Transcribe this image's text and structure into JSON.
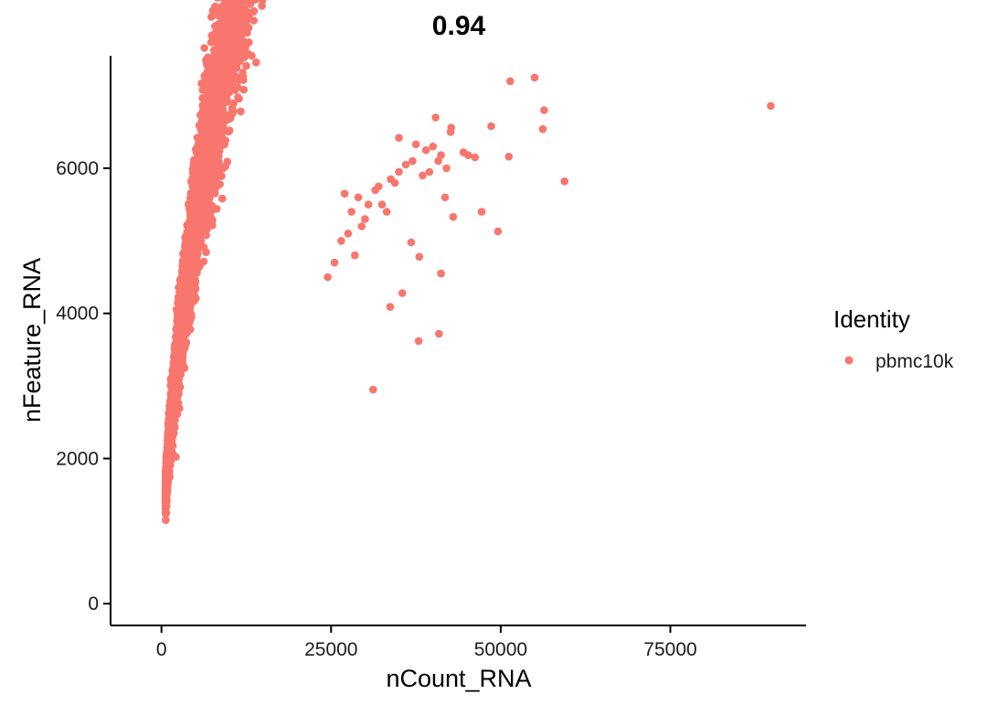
{
  "chart_data": {
    "type": "scatter",
    "title": "0.94",
    "xlabel": "nCount_RNA",
    "ylabel": "nFeature_RNA",
    "xlim": [
      -7500,
      95000
    ],
    "ylim": [
      -300,
      7550
    ],
    "xticks": [
      0,
      25000,
      50000,
      75000
    ],
    "yticks": [
      0,
      2000,
      4000,
      6000
    ],
    "xtick_labels": [
      "0",
      "25000",
      "50000",
      "75000"
    ],
    "ytick_labels": [
      "0",
      "2000",
      "4000",
      "6000"
    ],
    "grid": false,
    "legend": {
      "title": "Identity",
      "position": "right"
    },
    "series": [
      {
        "name": "pbmc10k",
        "color": "#F8766D",
        "trend": {
          "a": 34.0,
          "b": 0.592,
          "n_points": 9000,
          "x_min": 600,
          "x_max": 26000
        },
        "x": [
          51400,
          55000,
          56400,
          56200,
          89800,
          40400,
          42600,
          42700,
          44500,
          45200,
          46200,
          48600,
          51200,
          35000,
          37500,
          39000,
          40000,
          40800,
          41200,
          59400,
          47200,
          49600,
          43000,
          41200,
          38000,
          36800,
          35500,
          33700,
          37900,
          40900,
          31200,
          33200,
          34400,
          35000,
          36000,
          37000,
          38500,
          39500,
          42000,
          41800,
          30000,
          31500,
          32500,
          33800,
          29000,
          30500,
          32000,
          28000,
          27500,
          26500,
          27000,
          28500,
          29500,
          25500,
          24500
        ],
        "y": [
          7200,
          7250,
          6800,
          6540,
          6860,
          6700,
          6500,
          6560,
          6220,
          6180,
          6150,
          6580,
          6160,
          6420,
          6330,
          6250,
          6300,
          6100,
          6180,
          5820,
          5400,
          5130,
          5330,
          4550,
          4780,
          4980,
          4280,
          4090,
          3620,
          3720,
          2950,
          5400,
          5800,
          5950,
          6050,
          6100,
          5900,
          5950,
          6000,
          5600,
          5300,
          5700,
          5500,
          5850,
          5600,
          5500,
          5750,
          5400,
          5100,
          5000,
          5650,
          4800,
          5200,
          4700,
          4500
        ]
      }
    ]
  }
}
